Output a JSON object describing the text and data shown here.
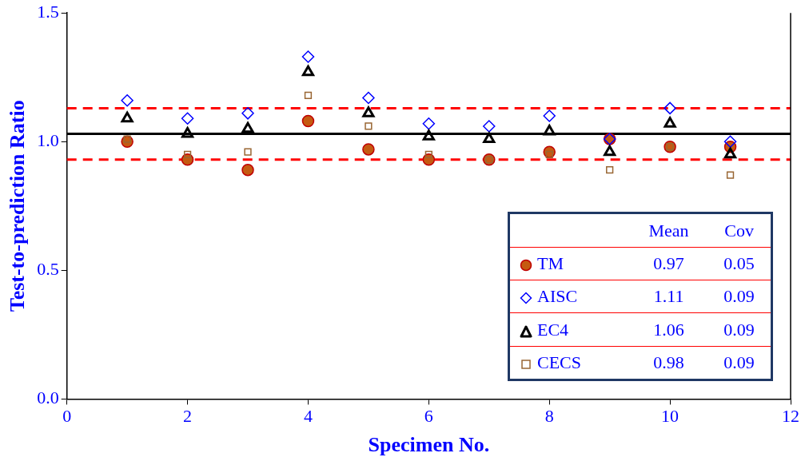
{
  "chart_data": {
    "type": "scatter",
    "xlabel": "Specimen No.",
    "ylabel": "Test-to-prediction Ratio",
    "x": [
      1,
      2,
      3,
      4,
      5,
      6,
      7,
      8,
      9,
      10,
      11
    ],
    "xlim": [
      0,
      12
    ],
    "xticks": [
      0,
      2,
      4,
      6,
      8,
      10,
      12
    ],
    "ylim": [
      0,
      1.5
    ],
    "yticks": [
      {
        "value": 0,
        "label": "0.0"
      },
      {
        "value": 0.5,
        "label": "0.5"
      },
      {
        "value": 1,
        "label": "1.0"
      },
      {
        "value": 1.5,
        "label": "1.5"
      }
    ],
    "grid": false,
    "legend": "bottom right",
    "series": [
      {
        "name": "TM",
        "color": "#c55a11",
        "marker": "circle",
        "values": [
          1.0,
          0.93,
          0.89,
          1.08,
          0.97,
          0.93,
          0.93,
          0.96,
          1.01,
          0.98,
          0.98
        ]
      },
      {
        "name": "AISC",
        "color": "#0000ff",
        "marker": "diamond",
        "values": [
          1.16,
          1.09,
          1.11,
          1.33,
          1.17,
          1.07,
          1.06,
          1.1,
          1.01,
          1.13,
          1.0
        ]
      },
      {
        "name": "EC4",
        "color": "#000000",
        "marker": "triangle",
        "values": [
          1.09,
          1.03,
          1.05,
          1.27,
          1.11,
          1.02,
          1.01,
          1.04,
          0.96,
          1.07,
          0.95
        ]
      },
      {
        "name": "CECS",
        "color": "#996633",
        "marker": "square",
        "values": [
          1.01,
          0.95,
          0.96,
          1.18,
          1.06,
          0.95,
          0.93,
          0.95,
          0.89,
          0.98,
          0.87
        ]
      }
    ],
    "ref_lines": [
      {
        "axis": "y",
        "value": 1.03,
        "color": "#000000",
        "line_style": "solid"
      },
      {
        "axis": "y",
        "value": 1.13,
        "color": "#ff0000",
        "line_style": "dashed"
      },
      {
        "axis": "y",
        "value": 0.93,
        "color": "#ff0000",
        "line_style": "dashed"
      }
    ],
    "annotations": [
      "Mean",
      "Cov",
      "0.97",
      "0.05",
      "1.11",
      "0.09",
      "1.06",
      "0.09",
      "0.98",
      "0.09"
    ]
  }
}
